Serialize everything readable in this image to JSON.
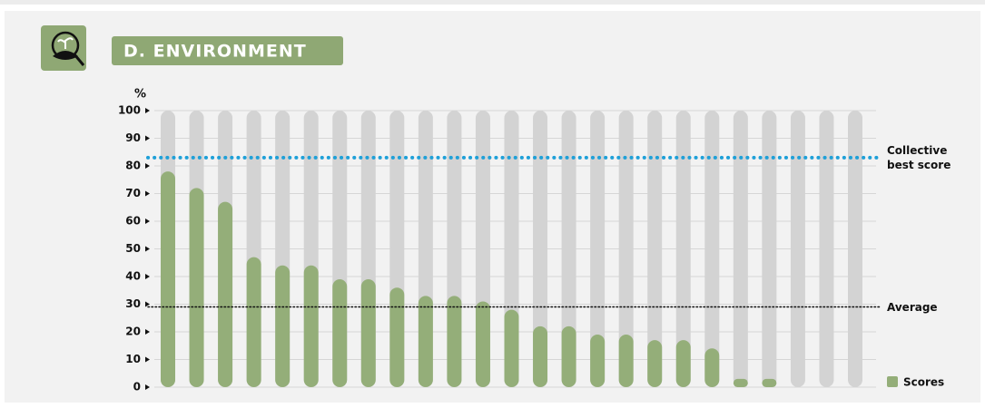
{
  "chart_data": {
    "type": "bar",
    "title": "D. ENVIRONMENT",
    "ylabel": "%",
    "categories": [
      null,
      null,
      null,
      null,
      null,
      null,
      null,
      null,
      null,
      null,
      null,
      null,
      null,
      null,
      null,
      null,
      null,
      null,
      null,
      null,
      null,
      null,
      null,
      null,
      null
    ],
    "series": [
      {
        "name": "Scores",
        "color": "#94ae79",
        "values": [
          78,
          72,
          67,
          47,
          44,
          44,
          39,
          39,
          36,
          33,
          33,
          31,
          28,
          22,
          22,
          19,
          19,
          17,
          17,
          14,
          3,
          3,
          0,
          0,
          0
        ]
      }
    ],
    "ylim": [
      0,
      100
    ],
    "yticks": [
      0,
      10,
      20,
      30,
      40,
      50,
      60,
      70,
      80,
      90,
      100
    ],
    "grid": true,
    "legend": "bottom right",
    "reference_lines": [
      {
        "label": "Collective best score",
        "value": 83,
        "color": "#1ea0d8"
      },
      {
        "label": "Average",
        "value": 29,
        "color": "#111111"
      }
    ]
  }
}
